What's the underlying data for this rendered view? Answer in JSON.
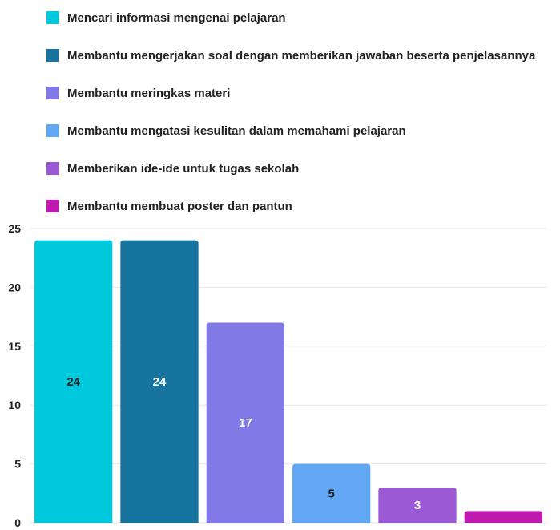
{
  "chart_data": {
    "type": "bar",
    "title": "",
    "xlabel": "",
    "ylabel": "",
    "ylim": [
      0,
      25
    ],
    "yticks": [
      0,
      5,
      10,
      15,
      20,
      25
    ],
    "grid": true,
    "legend_position": "top",
    "categories": [
      "Mencari informasi mengenai pelajaran",
      "Membantu mengerjakan soal dengan memberikan jawaban beserta penjelasannya",
      "Membantu meringkas materi",
      "Membantu mengatasi kesulitan dalam memahami pelajaran",
      "Memberikan ide-ide untuk tugas sekolah",
      "Membantu membuat poster dan pantun"
    ],
    "values": [
      24,
      24,
      17,
      5,
      3,
      1
    ],
    "data_labels": [
      "24",
      "24",
      "17",
      "5",
      "3",
      ""
    ],
    "colors": [
      "#00c8dd",
      "#17749e",
      "#8079e6",
      "#62a7f4",
      "#9b59d6",
      "#c11ab0"
    ],
    "label_colors": [
      "#222222",
      "#ffffff",
      "#ffffff",
      "#222222",
      "#ffffff",
      "#ffffff"
    ]
  }
}
